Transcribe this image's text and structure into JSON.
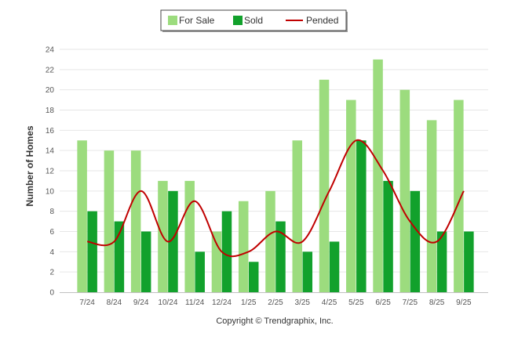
{
  "chart_data": {
    "type": "bar",
    "ylabel": "Number of Homes",
    "ylim": [
      0,
      24
    ],
    "y_ticks": [
      0,
      2,
      4,
      6,
      8,
      10,
      12,
      14,
      16,
      18,
      20,
      22,
      24
    ],
    "grid": true,
    "legend_position": "top-center",
    "categories": [
      "7/24",
      "8/24",
      "9/24",
      "10/24",
      "11/24",
      "12/24",
      "1/25",
      "2/25",
      "3/25",
      "4/25",
      "5/25",
      "6/25",
      "7/25",
      "8/25",
      "9/25"
    ],
    "series": [
      {
        "name": "For Sale",
        "kind": "bar",
        "color": "#9cdc7e",
        "values": [
          15,
          14,
          14,
          11,
          11,
          6,
          9,
          10,
          15,
          21,
          19,
          23,
          20,
          17,
          19
        ]
      },
      {
        "name": "Sold",
        "kind": "bar",
        "color": "#12a12c",
        "values": [
          8,
          7,
          6,
          10,
          4,
          8,
          3,
          7,
          4,
          5,
          15,
          11,
          10,
          6,
          6
        ]
      },
      {
        "name": "Pended",
        "kind": "line",
        "color": "#c00000",
        "values": [
          5,
          5,
          10,
          5,
          9,
          4,
          4,
          6,
          5,
          10,
          15,
          12,
          7,
          5,
          10
        ]
      }
    ]
  },
  "footer": {
    "copyright": "Copyright © Trendgraphix, Inc."
  }
}
